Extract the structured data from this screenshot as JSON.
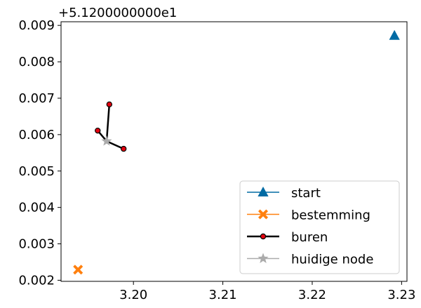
{
  "chart_data": {
    "type": "scatter",
    "title": "",
    "xlabel": "",
    "ylabel": "",
    "y_offset_label": "+5.1200000000e1",
    "xlim": [
      3.1919,
      3.2306
    ],
    "ylim": [
      0.00197,
      0.0091
    ],
    "x_ticks": [
      {
        "value": 3.2,
        "label": "3.20"
      },
      {
        "value": 3.21,
        "label": "3.21"
      },
      {
        "value": 3.22,
        "label": "3.22"
      },
      {
        "value": 3.23,
        "label": "3.23"
      }
    ],
    "y_ticks": [
      {
        "value": 0.002,
        "label": "0.002"
      },
      {
        "value": 0.003,
        "label": "0.003"
      },
      {
        "value": 0.004,
        "label": "0.004"
      },
      {
        "value": 0.005,
        "label": "0.005"
      },
      {
        "value": 0.006,
        "label": "0.006"
      },
      {
        "value": 0.007,
        "label": "0.007"
      },
      {
        "value": 0.008,
        "label": "0.008"
      },
      {
        "value": 0.009,
        "label": "0.009"
      }
    ],
    "grid": false,
    "legend_position": "bottom-right",
    "series": [
      {
        "name": "start",
        "color": "#006ba4",
        "marker": "triangle",
        "points": [
          {
            "x": 3.2292,
            "y": 0.00872
          }
        ]
      },
      {
        "name": "bestemming",
        "color": "#ff800e",
        "marker": "x-filled",
        "points": [
          {
            "x": 3.1938,
            "y": 0.00229
          }
        ]
      },
      {
        "name": "buren",
        "color": "#000000",
        "marker_fill": "#e3000f",
        "marker": "circle",
        "center": {
          "x": 3.197,
          "y": 0.00582
        },
        "points": [
          {
            "x": 3.196,
            "y": 0.00611
          },
          {
            "x": 3.1973,
            "y": 0.00683
          },
          {
            "x": 3.1989,
            "y": 0.00561
          }
        ]
      },
      {
        "name": "huidige node",
        "color": "#ababab",
        "marker": "star",
        "points": [
          {
            "x": 3.197,
            "y": 0.00582
          }
        ]
      }
    ]
  }
}
